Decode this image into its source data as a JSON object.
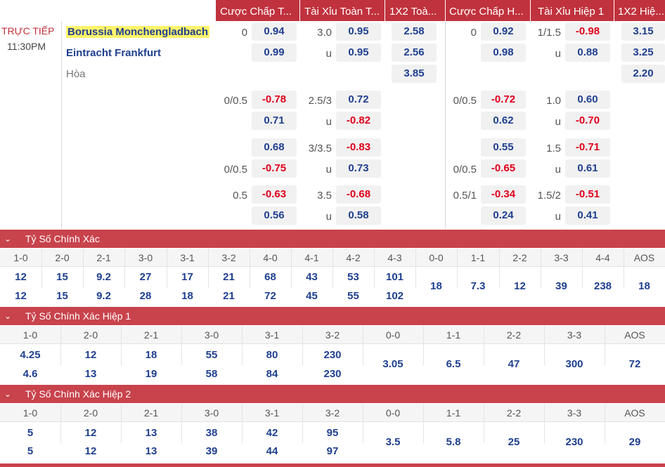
{
  "header": {
    "columns": [
      "Cược Chấp T...",
      "Tài Xỉu Toàn T...",
      "1X2 Toà...",
      "Cược Chấp H...",
      "Tài Xỉu Hiệp 1",
      "1X2 Hiệ..."
    ]
  },
  "match": {
    "status": "TRỰC TIẾP",
    "time": "11:30PM",
    "home": "Borussia Monchengladbach",
    "away": "Eintracht Frankfurt",
    "draw": "Hòa",
    "lines": {
      "ah_ft_1": "0",
      "ou_ft_1": "3.0",
      "ou_ft_1u": "u",
      "ah_ft_2": "0/0.5",
      "ou_ft_2": "2.5/3",
      "ou_ft_2u": "u",
      "ou_ft_3": "3/3.5",
      "ah_ft_3": "0/0.5",
      "ou_ft_3u": "u",
      "ah_ft_4": "0.5",
      "ou_ft_4": "3.5",
      "ou_ft_4u": "u",
      "ah_h1_1": "0",
      "ou_h1_1": "1/1.5",
      "ou_h1_1u": "u",
      "ah_h1_2": "0/0.5",
      "ou_h1_2": "1.0",
      "ou_h1_2u": "u",
      "ou_h1_3": "1.5",
      "ah_h1_3": "0/0.5",
      "ou_h1_3u": "u",
      "ah_h1_4": "0.5/1",
      "ou_h1_4": "1.5/2",
      "ou_h1_4u": "u"
    },
    "odds": {
      "ah_ft_1a": "0.94",
      "ah_ft_1b": "0.99",
      "ou_ft_1a": "0.95",
      "ou_ft_1b": "0.95",
      "x12_ft_home": "2.58",
      "x12_ft_away": "2.56",
      "x12_ft_draw": "3.85",
      "ah_h1_1a": "0.92",
      "ah_h1_1b": "0.98",
      "ou_h1_1a": "-0.98",
      "ou_h1_1b": "0.88",
      "x12_h1_home": "3.15",
      "x12_h1_away": "3.25",
      "x12_h1_draw": "2.20",
      "ah_ft_2a": "-0.78",
      "ah_ft_2b": "0.71",
      "ou_ft_2a": "0.72",
      "ou_ft_2b": "-0.82",
      "ah_h1_2a": "-0.72",
      "ah_h1_2b": "0.62",
      "ou_h1_2a": "0.60",
      "ou_h1_2b": "-0.70",
      "ah_ft_3a": "0.68",
      "ah_ft_3b": "-0.75",
      "ou_ft_3a": "-0.83",
      "ou_ft_3b": "0.73",
      "ah_h1_3a": "0.55",
      "ah_h1_3b": "-0.65",
      "ou_h1_3a": "-0.71",
      "ou_h1_3b": "0.61",
      "ah_ft_4a": "-0.63",
      "ah_ft_4b": "0.56",
      "ou_ft_4a": "-0.68",
      "ou_ft_4b": "0.58",
      "ah_h1_4a": "-0.34",
      "ah_h1_4b": "0.24",
      "ou_h1_4a": "-0.51",
      "ou_h1_4b": "0.41"
    }
  },
  "sections": [
    {
      "title": "Tỷ Số Chính Xác",
      "headers": [
        "1-0",
        "2-0",
        "2-1",
        "3-0",
        "3-1",
        "3-2",
        "4-0",
        "4-1",
        "4-2",
        "4-3",
        "0-0",
        "1-1",
        "2-2",
        "3-3",
        "4-4",
        "AOS"
      ],
      "home": [
        "12",
        "15",
        "9.2",
        "27",
        "17",
        "21",
        "68",
        "43",
        "53",
        "101"
      ],
      "away": [
        "12",
        "15",
        "9.2",
        "28",
        "18",
        "21",
        "72",
        "45",
        "55",
        "102"
      ],
      "single": [
        "18",
        "7.3",
        "12",
        "39",
        "238",
        "18"
      ]
    },
    {
      "title": "Tỷ Số Chính Xác Hiệp 1",
      "headers": [
        "1-0",
        "2-0",
        "2-1",
        "3-0",
        "3-1",
        "3-2",
        "0-0",
        "1-1",
        "2-2",
        "3-3",
        "AOS"
      ],
      "home": [
        "4.25",
        "12",
        "18",
        "55",
        "80",
        "230"
      ],
      "away": [
        "4.6",
        "13",
        "19",
        "58",
        "84",
        "230"
      ],
      "single": [
        "3.05",
        "6.5",
        "47",
        "300",
        "72"
      ]
    },
    {
      "title": "Tỷ Số Chính Xác Hiệp 2",
      "headers": [
        "1-0",
        "2-0",
        "2-1",
        "3-0",
        "3-1",
        "3-2",
        "0-0",
        "1-1",
        "2-2",
        "3-3",
        "AOS"
      ],
      "home": [
        "5",
        "12",
        "13",
        "38",
        "42",
        "95"
      ],
      "away": [
        "5",
        "12",
        "13",
        "39",
        "44",
        "97"
      ],
      "single": [
        "3.5",
        "5.8",
        "25",
        "230",
        "29"
      ]
    }
  ],
  "colors": {
    "accent": "#c0323d",
    "odds_positive": "#1f3f8f",
    "odds_negative": "#e0001b",
    "highlight": "#fff46a"
  },
  "icons": {
    "section_toggle": "chevron-down-icon"
  }
}
